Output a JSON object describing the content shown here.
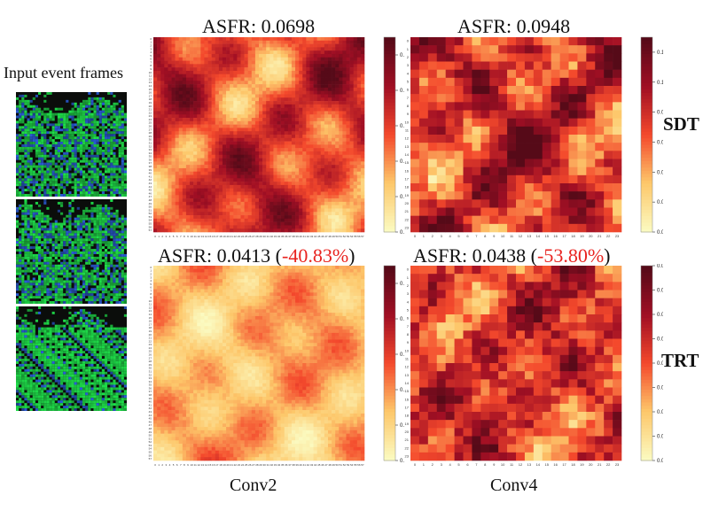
{
  "input_label": "Input event frames",
  "row_labels": {
    "sdt": "SDT",
    "trt": "TRT"
  },
  "col_labels": {
    "conv2": "Conv2",
    "conv4": "Conv4"
  },
  "panels": {
    "p1": {
      "prefix": "ASFR",
      "value": ": 0.0698",
      "delta": ""
    },
    "p2": {
      "prefix": "ASFR",
      "value": ": 0.0948",
      "delta": ""
    },
    "p3": {
      "prefix": "ASFR",
      "value": ": 0.0413 (",
      "delta": "-40.83%",
      "suffix": ")"
    },
    "p4": {
      "prefix": "ASFR",
      "value": ": 0.0438 (",
      "delta": "-53.80%",
      "suffix": ")"
    }
  },
  "colors": {
    "map_low": "#fbfac0",
    "map_mid1": "#fdc76a",
    "map_mid2": "#f4492c",
    "map_high": "#a10f24",
    "map_top": "#560a18",
    "frame_green": "#1fe04a",
    "frame_blue": "#2a5cd8",
    "delta_red": "#e8231f"
  },
  "chart_data": [
    {
      "type": "heatmap",
      "name": "SDT Conv2",
      "grid": [
        58,
        58
      ],
      "color_range": [
        0,
        0.11
      ],
      "colorbar_ticks": [
        "0.00",
        "0.02",
        "0.04",
        "0.06",
        "0.08",
        "0.10"
      ],
      "colorbar_values": [
        0,
        0.02,
        0.04,
        0.06,
        0.08,
        0.1
      ]
    },
    {
      "type": "heatmap",
      "name": "SDT Conv4",
      "grid": [
        24,
        24
      ],
      "color_range": [
        0,
        0.13
      ],
      "colorbar_ticks": [
        "0.00",
        "0.02",
        "0.04",
        "0.06",
        "0.08",
        "0.10",
        "0.12"
      ],
      "colorbar_values": [
        0,
        0.02,
        0.04,
        0.06,
        0.08,
        0.1,
        0.12
      ]
    },
    {
      "type": "heatmap",
      "name": "TRT Conv2",
      "grid": [
        58,
        58
      ],
      "color_range": [
        0,
        0.11
      ],
      "colorbar_ticks": [
        "0.00",
        "0.02",
        "0.04",
        "0.06",
        "0.08",
        "0.10"
      ],
      "colorbar_values": [
        0,
        0.02,
        0.04,
        0.06,
        0.08,
        0.1
      ]
    },
    {
      "type": "heatmap",
      "name": "TRT Conv4",
      "grid": [
        24,
        24
      ],
      "color_range": [
        0,
        0.08
      ],
      "colorbar_ticks": [
        "0.00",
        "0.01",
        "0.02",
        "0.03",
        "0.04",
        "0.05",
        "0.06",
        "0.07",
        "0.08"
      ],
      "colorbar_values": [
        0,
        0.01,
        0.02,
        0.03,
        0.04,
        0.05,
        0.06,
        0.07,
        0.08
      ]
    }
  ]
}
